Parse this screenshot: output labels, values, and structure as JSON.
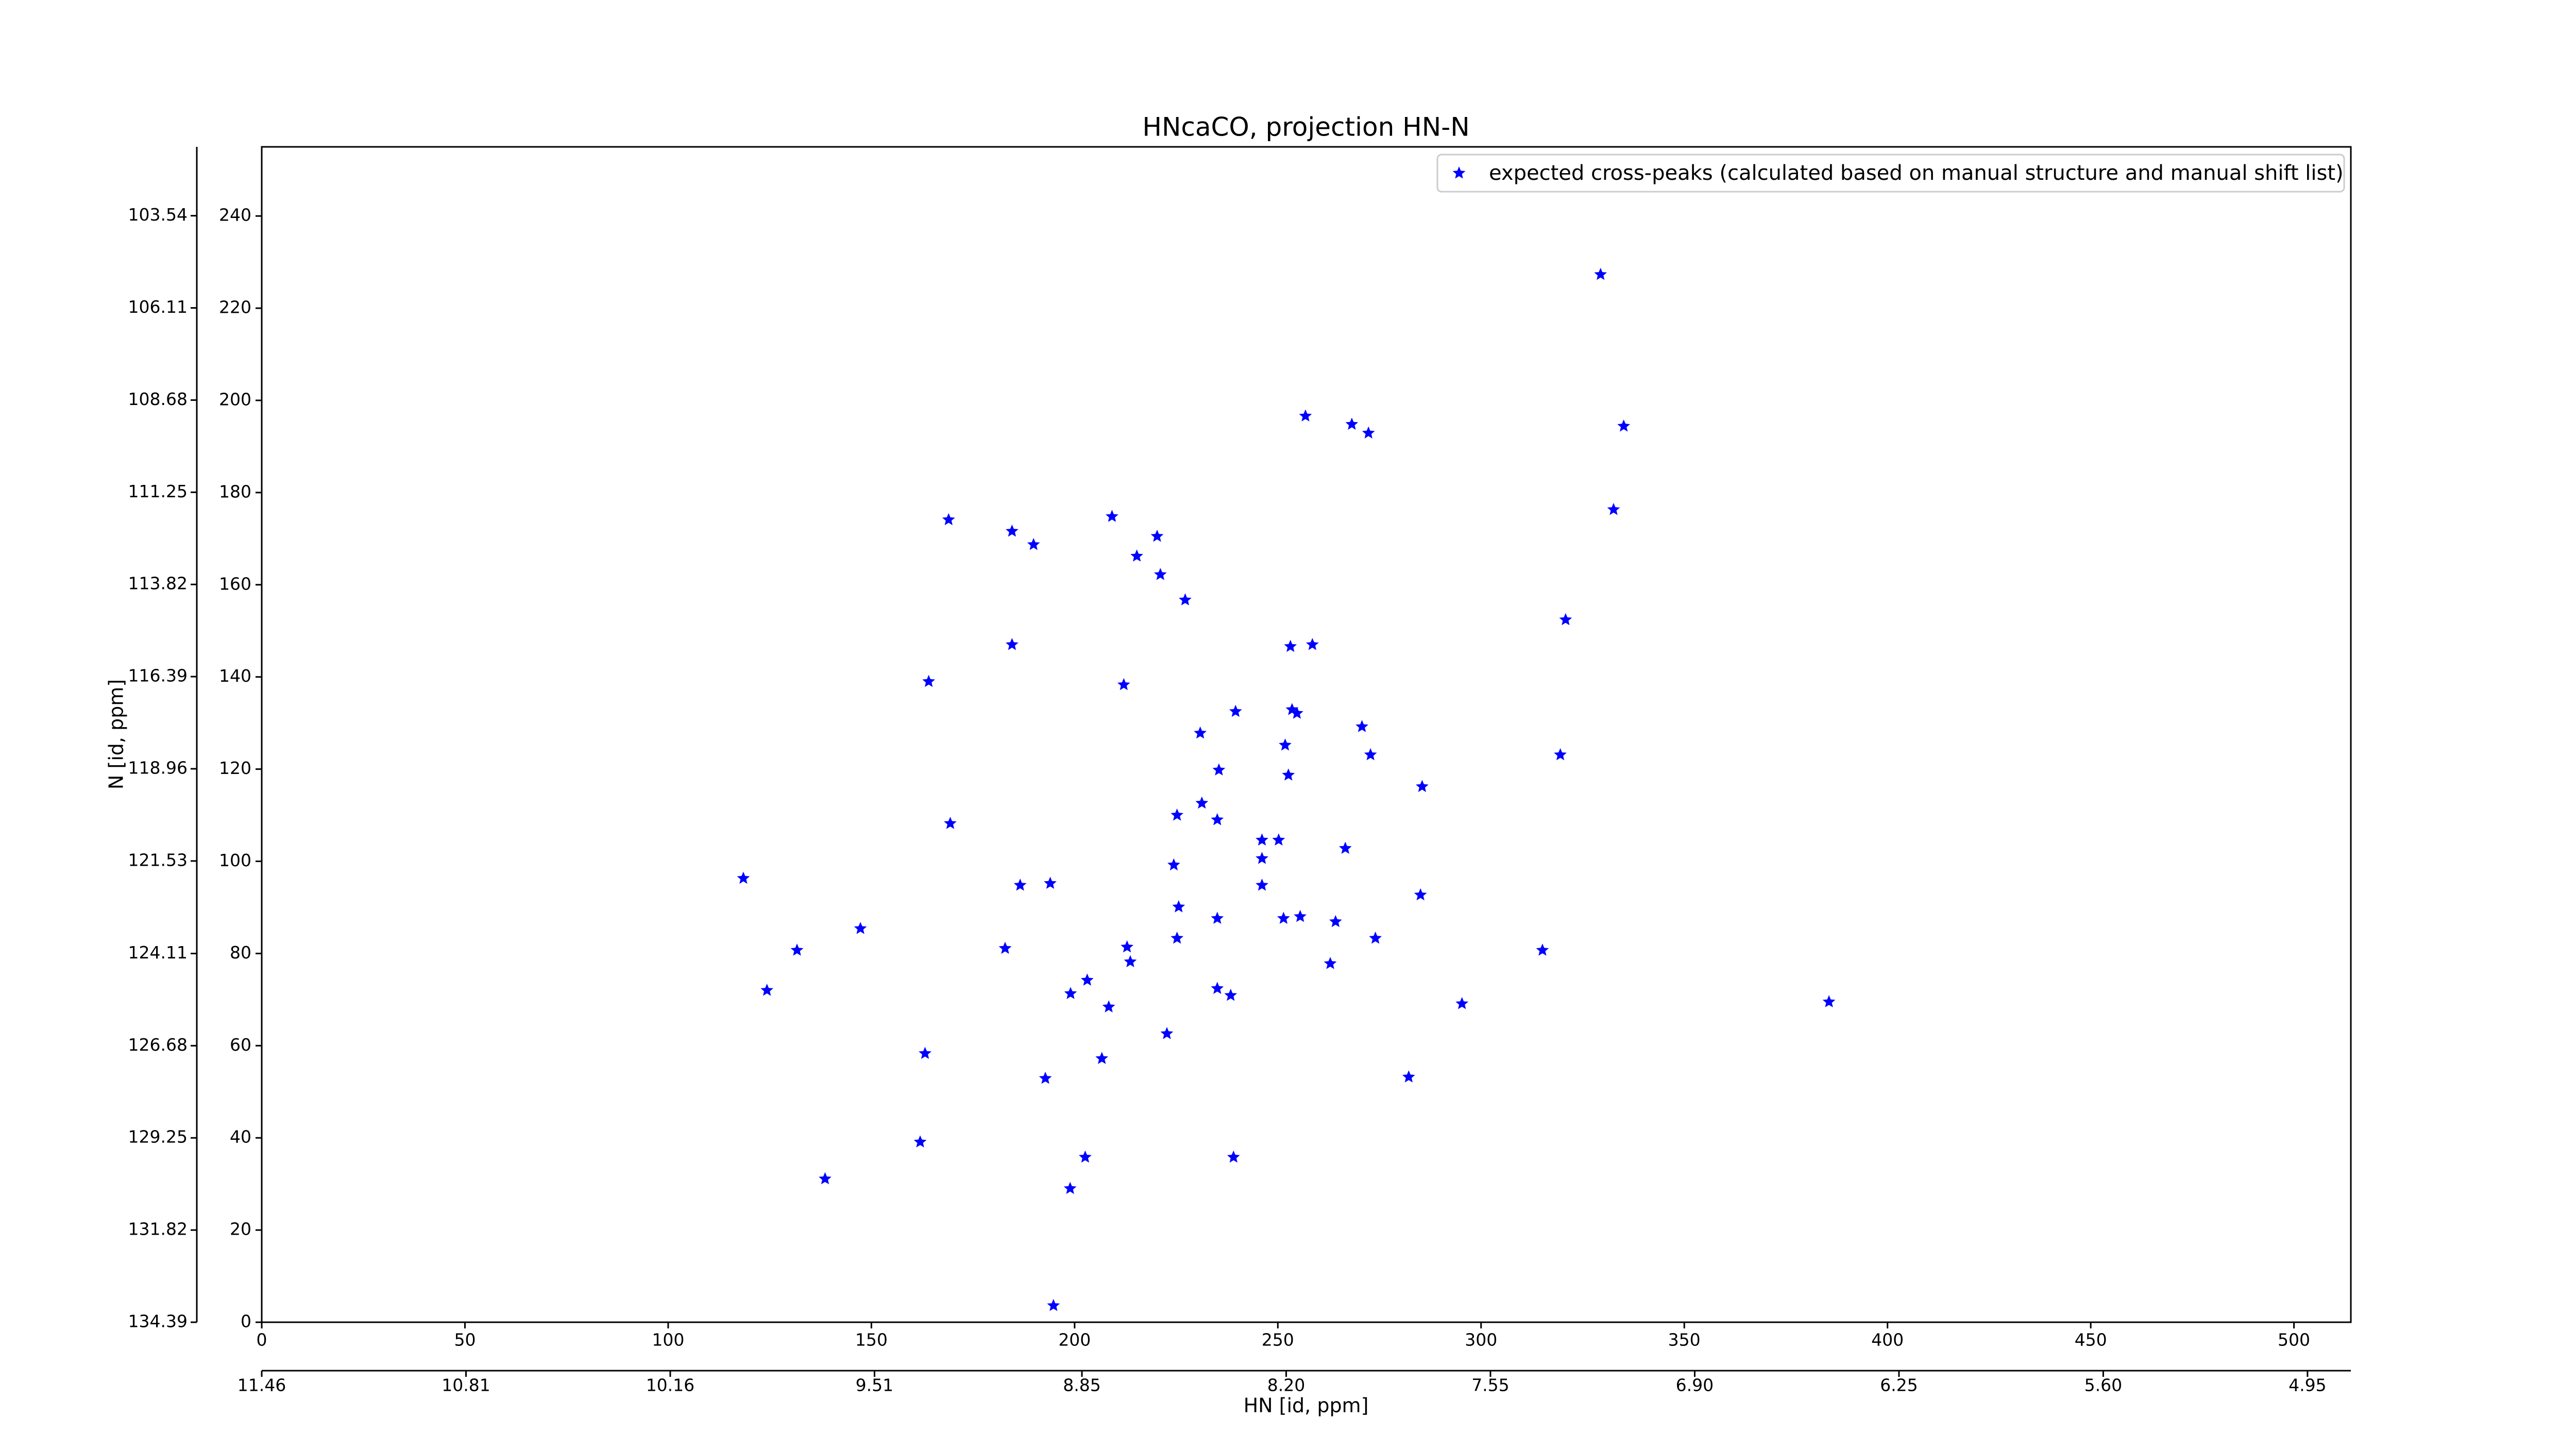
{
  "chart_data": {
    "type": "scatter",
    "title": "HNcaCO, projection HN-N",
    "xlabel": "HN [id, ppm]",
    "ylabel": "N [id, ppm]",
    "legend": "upper right",
    "series": [
      {
        "name": "expected cross-peaks (calculated based on manual structure and manual shift list)",
        "color": "#0000ff",
        "x": [
          118.5,
          131.7,
          124.3,
          147.3,
          138.6,
          164.1,
          169.0,
          169.4,
          163.2,
          162.0,
          184.6,
          189.9,
          184.6,
          186.6,
          194.0,
          182.9,
          199.0,
          203.1,
          208.4,
          192.8,
          206.7,
          202.6,
          198.9,
          194.8,
          209.2,
          220.3,
          215.3,
          221.1,
          227.2,
          212.1,
          230.9,
          239.6,
          225.2,
          231.3,
          235.5,
          235.1,
          224.4,
          225.6,
          225.2,
          235.1,
          212.9,
          213.7,
          235.1,
          238.4,
          222.7,
          239.1,
          253.1,
          258.5,
          253.5,
          254.7,
          251.8,
          252.6,
          246.1,
          250.2,
          246.1,
          246.1,
          251.4,
          255.5,
          256.8,
          268.2,
          272.3,
          270.7,
          272.8,
          285.5,
          266.6,
          264.2,
          274.0,
          262.9,
          285.1,
          295.3,
          282.2,
          320.8,
          319.5,
          315.1,
          329.4,
          335.1,
          332.6,
          385.6
        ],
        "y": [
          96.3,
          80.7,
          72.0,
          85.4,
          31.1,
          139.0,
          174.1,
          108.2,
          58.3,
          39.1,
          171.6,
          168.7,
          147.0,
          94.8,
          95.2,
          81.1,
          71.3,
          74.2,
          68.4,
          52.9,
          57.2,
          35.8,
          29.0,
          3.6,
          174.8,
          170.5,
          166.2,
          162.2,
          156.7,
          138.3,
          127.8,
          132.5,
          110.0,
          112.6,
          119.8,
          109.0,
          99.2,
          90.1,
          83.3,
          87.6,
          81.4,
          78.2,
          72.4,
          70.9,
          62.6,
          35.8,
          146.6,
          147.0,
          132.9,
          132.1,
          125.2,
          118.7,
          104.6,
          104.6,
          100.6,
          94.8,
          87.6,
          88.0,
          196.6,
          194.8,
          192.9,
          129.2,
          123.1,
          116.2,
          102.8,
          86.9,
          83.3,
          77.8,
          92.7,
          69.1,
          53.2,
          152.4,
          123.1,
          80.7,
          227.3,
          194.4,
          176.3,
          69.5
        ]
      }
    ],
    "xlim": [
      0,
      514
    ],
    "xticks": [
      0,
      50,
      100,
      150,
      200,
      250,
      300,
      350,
      400,
      450,
      500
    ],
    "ylim": [
      0,
      255
    ],
    "yticks": [
      0,
      20,
      40,
      60,
      80,
      100,
      120,
      140,
      160,
      180,
      200,
      220,
      240
    ],
    "x2lim": [
      11.46,
      4.812
    ],
    "x2ticks": [
      11.46,
      10.81,
      10.16,
      9.51,
      8.85,
      {
        "value": 8.2,
        "label": "8.20"
      },
      7.55,
      {
        "value": 6.9,
        "label": "6.90"
      },
      6.25,
      {
        "value": 5.6,
        "label": "5.60"
      },
      4.95
    ],
    "y2lim": [
      134.39,
      101.62
    ],
    "y2ticks": [
      103.54,
      106.11,
      108.68,
      111.25,
      113.82,
      116.39,
      118.96,
      121.53,
      124.11,
      126.68,
      129.25,
      131.82,
      134.39
    ]
  }
}
